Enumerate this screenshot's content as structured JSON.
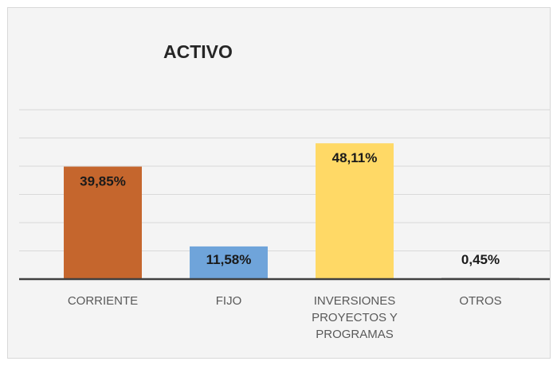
{
  "chart_data": {
    "type": "bar",
    "title": "ACTIVO",
    "categories": [
      "CORRIENTE",
      "FIJO",
      "INVERSIONES PROYECTOS Y PROGRAMAS",
      "OTROS"
    ],
    "values": [
      39.85,
      11.58,
      48.11,
      0.45
    ],
    "value_labels": [
      "39,85%",
      "11,58%",
      "48,11%",
      "0,45%"
    ],
    "colors": [
      "#c5662d",
      "#6fa4da",
      "#ffd966",
      "#a5a5a5"
    ],
    "ylim": [
      0,
      60
    ],
    "yticks": [
      0,
      10,
      20,
      30,
      40,
      50,
      60
    ],
    "grid": true
  }
}
